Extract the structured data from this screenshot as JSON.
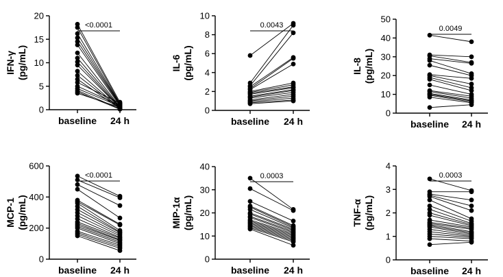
{
  "chart_data": [
    {
      "type": "paired-dot",
      "ylabel_line1": "IFN-γ",
      "ylabel_line2": "(pg/mL)",
      "categories": [
        "baseline",
        "24 h"
      ],
      "ylim": [
        0,
        20
      ],
      "yticks": [
        "0",
        "5",
        "10",
        "15",
        "20"
      ],
      "ytick_values": [
        0,
        5,
        10,
        15,
        20
      ],
      "p_value": "<0.0001",
      "baseline": [
        18.2,
        17.5,
        16.2,
        15.3,
        14.5,
        13.8,
        12.1,
        11.0,
        10.2,
        9.5,
        8.2,
        7.3,
        6.5,
        5.8,
        5.0,
        4.5,
        4.1,
        3.8,
        3.5
      ],
      "h24": [
        1.6,
        1.3,
        1.2,
        1.1,
        1.0,
        0.8,
        0.6,
        0.5,
        0.4,
        0.4,
        0.3,
        0.3,
        0.2,
        1.4,
        0.9,
        0.7,
        0.2,
        0.1,
        0.5
      ]
    },
    {
      "type": "paired-dot",
      "ylabel_line1": "IL-6",
      "ylabel_line2": "(pg/mL)",
      "categories": [
        "baseline",
        "24 h"
      ],
      "ylim": [
        0,
        10
      ],
      "yticks": [
        "0",
        "2",
        "4",
        "6",
        "8",
        "10"
      ],
      "ytick_values": [
        0,
        2,
        4,
        6,
        8,
        10
      ],
      "p_value": "0.0043",
      "baseline": [
        5.8,
        2.9,
        2.6,
        2.5,
        2.3,
        2.2,
        2.0,
        1.9,
        1.8,
        1.7,
        1.5,
        1.4,
        1.3,
        1.1,
        1.0,
        0.9,
        0.8,
        0.7
      ],
      "h24": [
        9.2,
        9.0,
        8.2,
        5.6,
        5.5,
        4.9,
        2.9,
        2.7,
        2.5,
        2.4,
        2.2,
        2.1,
        1.9,
        1.7,
        1.5,
        1.3,
        1.1,
        1.0
      ]
    },
    {
      "type": "paired-dot",
      "ylabel_line1": "IL-8",
      "ylabel_line2": "(pg/mL)",
      "categories": [
        "baseline",
        "24 h"
      ],
      "ylim": [
        0,
        50
      ],
      "yticks": [
        "0",
        "10",
        "20",
        "30",
        "40",
        "50"
      ],
      "ytick_values": [
        0,
        10,
        20,
        30,
        40,
        50
      ],
      "p_value": "0.0049",
      "baseline": [
        41.5,
        31.0,
        30.5,
        29.0,
        28.0,
        25.5,
        20.5,
        20.0,
        19.0,
        18.0,
        15.0,
        12.0,
        11.5,
        10.5,
        10.0,
        9.5,
        8.5,
        3.0
      ],
      "h24": [
        38.0,
        30.0,
        27.0,
        26.5,
        21.0,
        20.0,
        18.5,
        15.5,
        13.5,
        12.0,
        10.0,
        9.0,
        8.0,
        7.0,
        6.5,
        6.0,
        5.5,
        4.5
      ]
    },
    {
      "type": "paired-dot",
      "ylabel_line1": "MCP-1",
      "ylabel_line2": "(pg/mL)",
      "categories": [
        "baseline",
        "24 h"
      ],
      "ylim": [
        0,
        600
      ],
      "yticks": [
        "0",
        "200",
        "400",
        "600"
      ],
      "ytick_values": [
        0,
        200,
        400,
        600
      ],
      "p_value": "<0.0001",
      "baseline": [
        535,
        510,
        480,
        450,
        380,
        370,
        360,
        340,
        320,
        300,
        280,
        260,
        240,
        230,
        220,
        210,
        200,
        180,
        170,
        160,
        150
      ],
      "h24": [
        405,
        395,
        345,
        265,
        225,
        220,
        185,
        175,
        170,
        160,
        150,
        140,
        135,
        125,
        120,
        110,
        100,
        90,
        80,
        70,
        55
      ]
    },
    {
      "type": "paired-dot",
      "ylabel_line1": "MIP-1α",
      "ylabel_line2": "(pg/mL)",
      "categories": [
        "baseline",
        "24 h"
      ],
      "ylim": [
        0,
        40
      ],
      "yticks": [
        "0",
        "10",
        "20",
        "30",
        "40"
      ],
      "ytick_values": [
        0,
        10,
        20,
        30,
        40
      ],
      "p_value": "0.0003",
      "baseline": [
        35.0,
        30.5,
        25.0,
        23.0,
        22.5,
        21.5,
        20.0,
        19.5,
        18.5,
        18.0,
        17.0,
        16.5,
        16.0,
        15.5,
        15.0,
        14.5,
        14.0,
        13.5,
        13.0
      ],
      "h24": [
        21.5,
        21.0,
        16.5,
        14.5,
        14.0,
        13.5,
        13.0,
        12.5,
        12.0,
        11.5,
        11.0,
        10.5,
        10.0,
        9.5,
        9.0,
        8.5,
        8.0,
        7.5,
        6.0
      ]
    },
    {
      "type": "paired-dot",
      "ylabel_line1": "TNF-α",
      "ylabel_line2": "(pg/mL)",
      "categories": [
        "baseline",
        "24 h"
      ],
      "ylim": [
        0,
        4
      ],
      "yticks": [
        "0",
        "1",
        "2",
        "3",
        "4"
      ],
      "ytick_values": [
        0,
        1,
        2,
        3,
        4
      ],
      "p_value": "0.0003",
      "baseline": [
        3.45,
        2.9,
        2.8,
        2.75,
        2.7,
        2.55,
        2.3,
        2.15,
        2.0,
        1.9,
        1.7,
        1.6,
        1.55,
        1.5,
        1.45,
        1.4,
        1.3,
        1.2,
        1.1,
        1.0,
        0.9,
        0.65
      ],
      "h24": [
        2.95,
        2.9,
        2.55,
        2.3,
        2.1,
        1.75,
        1.65,
        1.55,
        1.5,
        1.45,
        1.4,
        1.35,
        1.3,
        1.2,
        1.15,
        1.1,
        1.05,
        1.0,
        0.95,
        0.9,
        0.8,
        0.75
      ]
    }
  ]
}
